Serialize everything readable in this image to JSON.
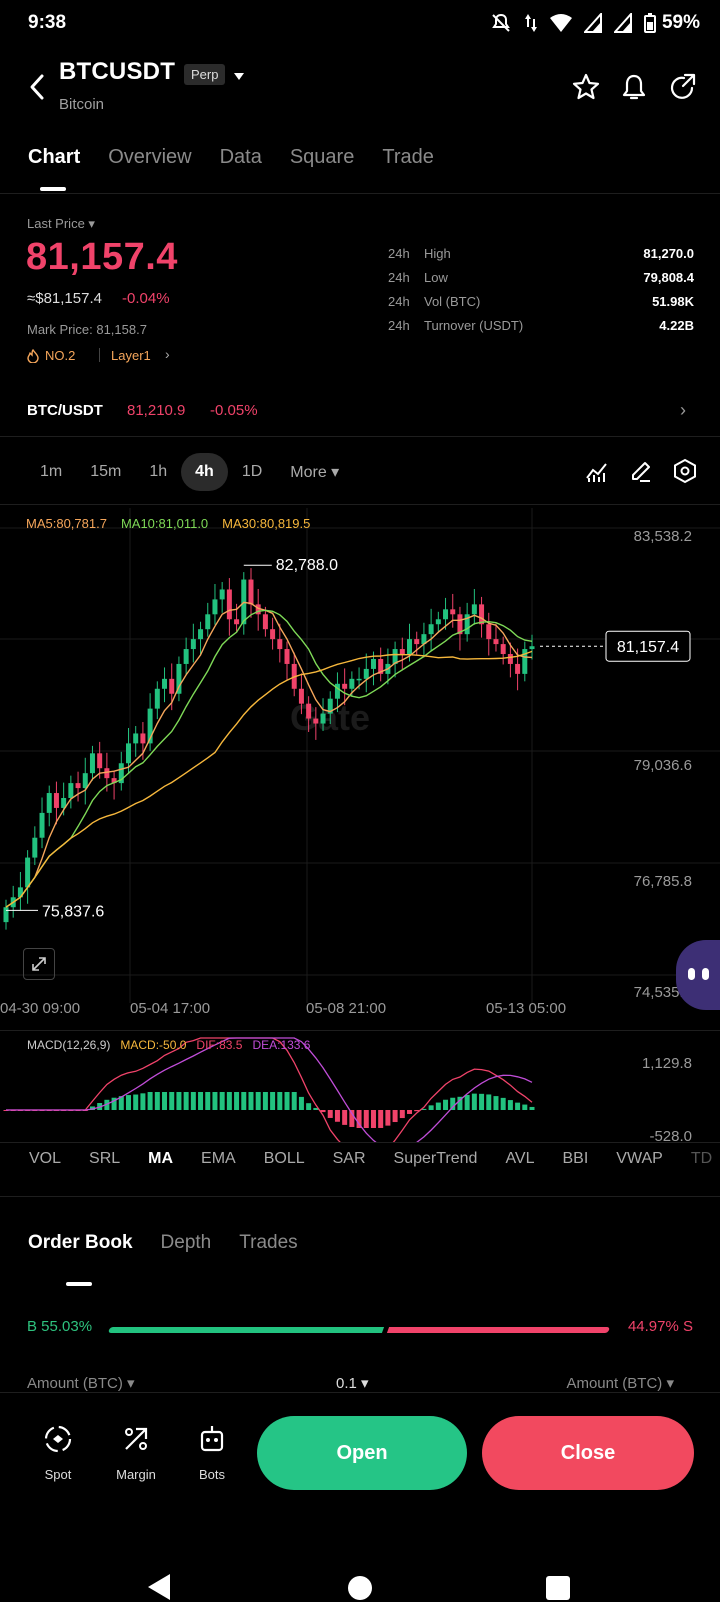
{
  "status": {
    "time": "9:38",
    "battery": "59%"
  },
  "header": {
    "symbol": "BTCUSDT",
    "contract_type": "Perp",
    "name": "Bitcoin"
  },
  "tabs": [
    "Chart",
    "Overview",
    "Data",
    "Square",
    "Trade"
  ],
  "price": {
    "last_label": "Last Price",
    "last": "81,157.4",
    "usd": "≈$81,157.4",
    "change": "-0.04%",
    "mark": "Mark Price: 81,158.7",
    "rank": "NO.2",
    "layer": "Layer1"
  },
  "stats": [
    {
      "period": "24h",
      "label": "High",
      "value": "81,270.0"
    },
    {
      "period": "24h",
      "label": "Low",
      "value": "79,808.4"
    },
    {
      "period": "24h",
      "label": "Vol (BTC)",
      "value": "51.98K"
    },
    {
      "period": "24h",
      "label": "Turnover (USDT)",
      "value": "4.22B"
    }
  ],
  "spot": {
    "pair": "BTC/USDT",
    "price": "81,210.9",
    "change": "-0.05%"
  },
  "intervals": [
    "1m",
    "15m",
    "1h",
    "4h",
    "1D",
    "More"
  ],
  "active_interval": "4h",
  "ma_legend": {
    "ma5": "MA5:80,781.7",
    "ma10": "MA10:81,011.0",
    "ma30": "MA30:80,819.5"
  },
  "axis": {
    "y1": "83,538.2",
    "y2": "79,036.6",
    "y3": "76,785.8",
    "y4": "74,535.0"
  },
  "time_labels": [
    "04-30 09:00",
    "05-04 17:00",
    "05-08 21:00",
    "05-13 05:00"
  ],
  "chart_labels": {
    "high": "82,788.0",
    "low": "75,837.6",
    "current": "81,157.4"
  },
  "macd": {
    "title": "MACD(12,26,9)",
    "macd": "MACD:-50.0",
    "dif": "DIF:83.5",
    "dea": "DEA:133.6",
    "top": "1,129.8",
    "bottom": "-528.0"
  },
  "indicators": [
    "VOL",
    "SRL",
    "MA",
    "EMA",
    "BOLL",
    "SAR",
    "SuperTrend",
    "AVL",
    "BBI",
    "VWAP",
    "TD"
  ],
  "active_indicator": "MA",
  "orderbook": {
    "tabs": [
      "Order Book",
      "Depth",
      "Trades"
    ],
    "buy": "B 55.03%",
    "sell": "44.97% S",
    "buy_ratio": 0.5503,
    "col_left": "Amount (BTC)",
    "col_mid": "0.1",
    "col_right": "Amount (BTC)"
  },
  "actions": {
    "spot": "Spot",
    "margin": "Margin",
    "bots": "Bots",
    "open": "Open",
    "close": "Close"
  },
  "colors": {
    "up": "#22c27f",
    "down": "#f0436a",
    "ma5": "#f5a65b",
    "ma10": "#7ed957",
    "ma30": "#f6b73c",
    "dea": "#c04dd8",
    "dif": "#f0436a"
  }
}
